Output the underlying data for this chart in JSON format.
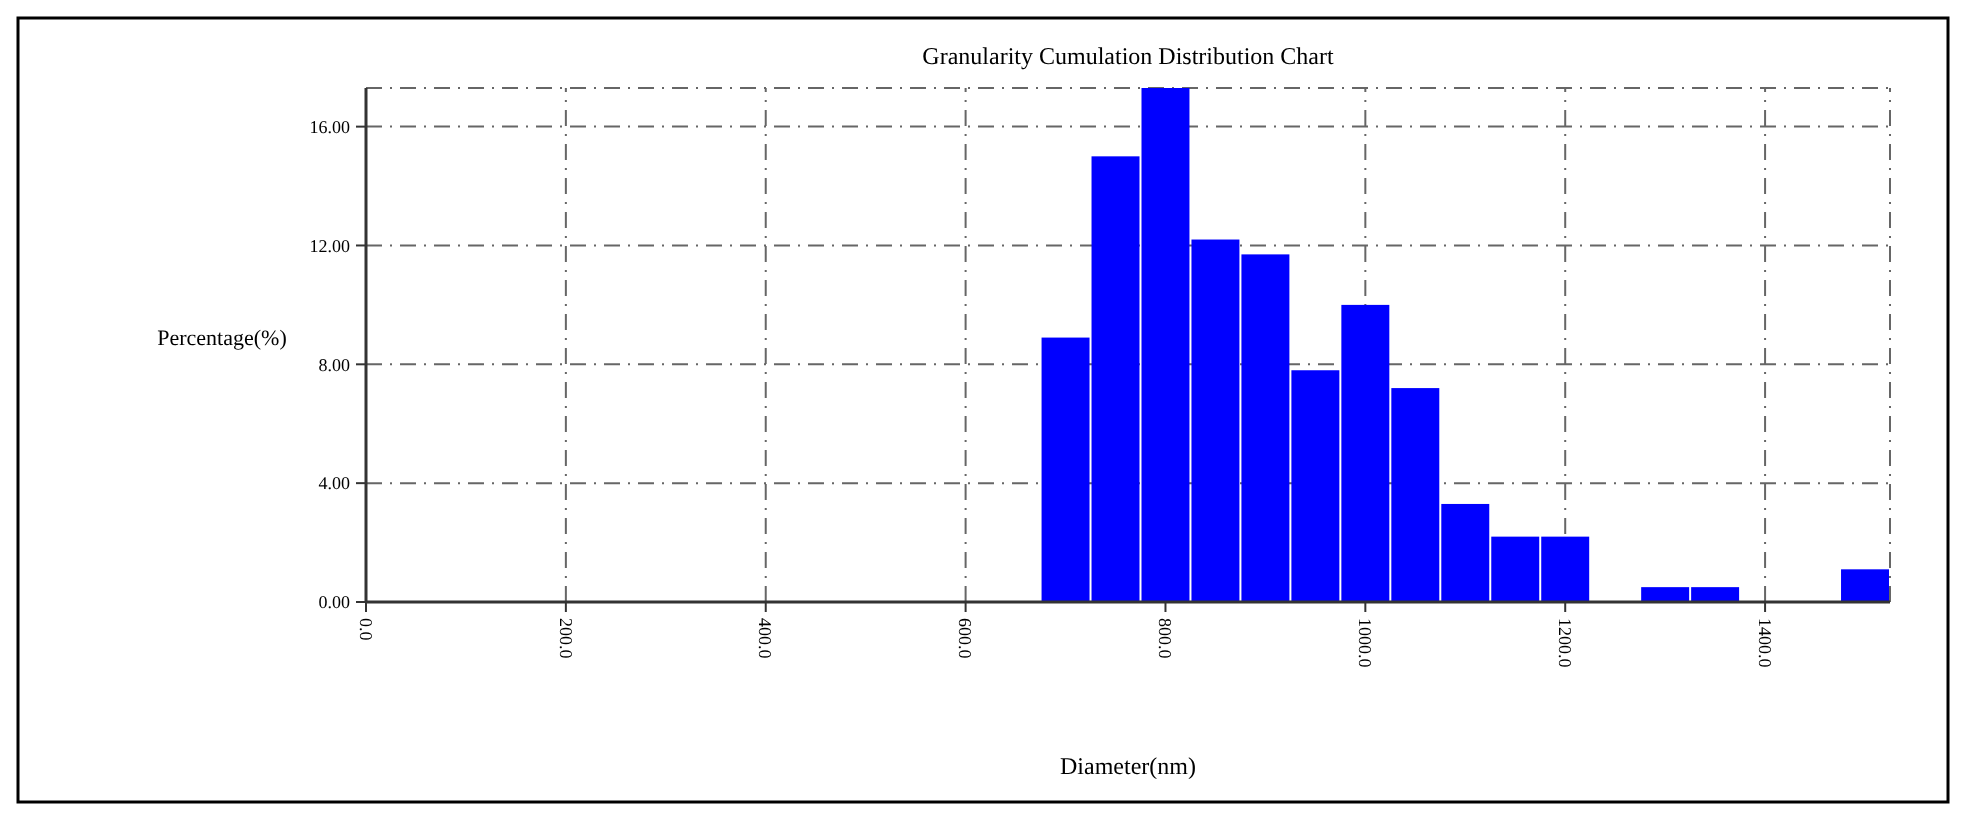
{
  "chart_data": {
    "type": "histogram",
    "title": "Granularity Cumulation Distribution  Chart",
    "xlabel": "Diameter(nm)",
    "ylabel": "Percentage(%)",
    "bins": [
      675,
      725,
      775,
      825,
      875,
      925,
      975,
      1025,
      1075,
      1125,
      1175,
      1225,
      1275,
      1325,
      1375,
      1425,
      1475,
      1525
    ],
    "values": [
      8.9,
      15.0,
      17.3,
      12.2,
      11.7,
      7.8,
      10.0,
      7.2,
      3.3,
      2.2,
      2.2,
      0,
      0.5,
      0.5,
      0,
      0,
      1.1
    ],
    "color": "#0000ff",
    "xlim": [
      0,
      1525
    ],
    "ylim": [
      0,
      17.3
    ],
    "xticks": [
      {
        "value": 0,
        "label": "0.0"
      },
      {
        "value": 200,
        "label": "200.0"
      },
      {
        "value": 400,
        "label": "400.0"
      },
      {
        "value": 600,
        "label": "600.0"
      },
      {
        "value": 800,
        "label": "800.0"
      },
      {
        "value": 1000,
        "label": "1000.0"
      },
      {
        "value": 1200,
        "label": "1200.0"
      },
      {
        "value": 1400,
        "label": "1400.0"
      }
    ],
    "yticks": [
      {
        "value": 0,
        "label": "0.00"
      },
      {
        "value": 4,
        "label": "4.00"
      },
      {
        "value": 8,
        "label": "8.00"
      },
      {
        "value": 12,
        "label": "12.00"
      },
      {
        "value": 16,
        "label": "16.00"
      }
    ],
    "grid": true
  }
}
